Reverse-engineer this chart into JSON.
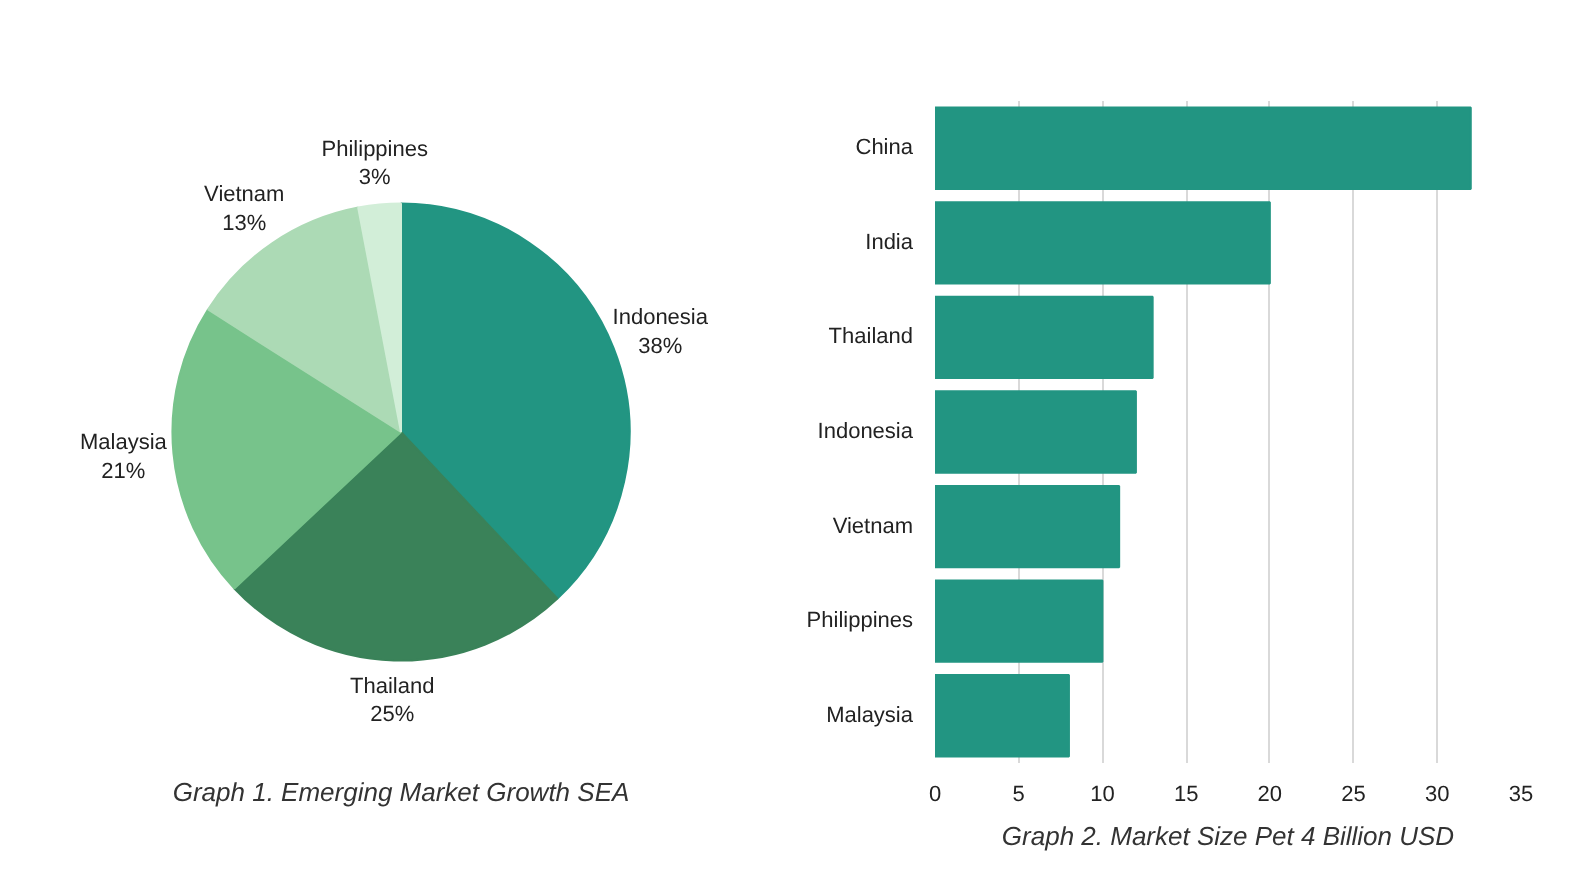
{
  "chart_data": [
    {
      "type": "pie",
      "title": "Graph 1. Emerging Market Growth SEA",
      "categories": [
        "Indonesia",
        "Thailand",
        "Malaysia",
        "Vietnam",
        "Philippines"
      ],
      "values": [
        38,
        25,
        21,
        13,
        3
      ],
      "value_labels": [
        "38%",
        "25%",
        "21%",
        "13%",
        "3%"
      ],
      "colors": [
        "#229582",
        "#3a8259",
        "#77c38b",
        "#acdab5",
        "#d2eed8"
      ]
    },
    {
      "type": "bar",
      "orientation": "horizontal",
      "title": "Graph 2. Market Size Pet 4 Billion USD",
      "categories": [
        "China",
        "India",
        "Thailand",
        "Indonesia",
        "Vietnam",
        "Philippines",
        "Malaysia"
      ],
      "values": [
        32,
        20,
        13,
        12,
        11,
        10,
        8
      ],
      "color": "#229582",
      "xlim": [
        0,
        35
      ],
      "xticks": [
        0,
        5,
        10,
        15,
        20,
        25,
        30,
        35
      ],
      "grid": "x"
    }
  ]
}
